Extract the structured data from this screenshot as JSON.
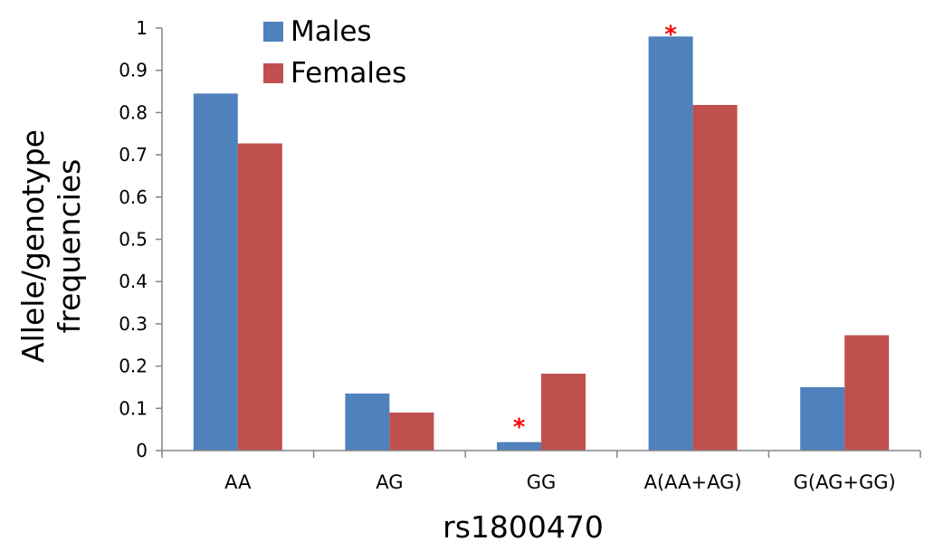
{
  "chart_data": {
    "type": "bar",
    "xlabel": "rs1800470",
    "ylabel_lines": [
      "Allele/genotype",
      "frequencies"
    ],
    "categories": [
      "AA",
      "AG",
      "GG",
      "A(AA+AG)",
      "G(AG+GG)"
    ],
    "series": [
      {
        "name": "Males",
        "color": "#4F81BD",
        "values": [
          0.845,
          0.135,
          0.02,
          0.98,
          0.15
        ]
      },
      {
        "name": "Females",
        "color": "#C0504D",
        "values": [
          0.727,
          0.09,
          0.182,
          0.818,
          0.273
        ]
      }
    ],
    "ylim": [
      0,
      1
    ],
    "yticks": [
      "0",
      "0.1",
      "0.2",
      "0.3",
      "0.4",
      "0.5",
      "0.6",
      "0.7",
      "0.8",
      "0.9",
      "1"
    ],
    "grid": false,
    "legend_position": "top-left",
    "annotations": [
      {
        "text": "*",
        "category": "GG",
        "series": "Males",
        "color": "#FF0000"
      },
      {
        "text": "*",
        "category": "A(AA+AG)",
        "series": "Males",
        "color": "#FF0000"
      }
    ]
  }
}
